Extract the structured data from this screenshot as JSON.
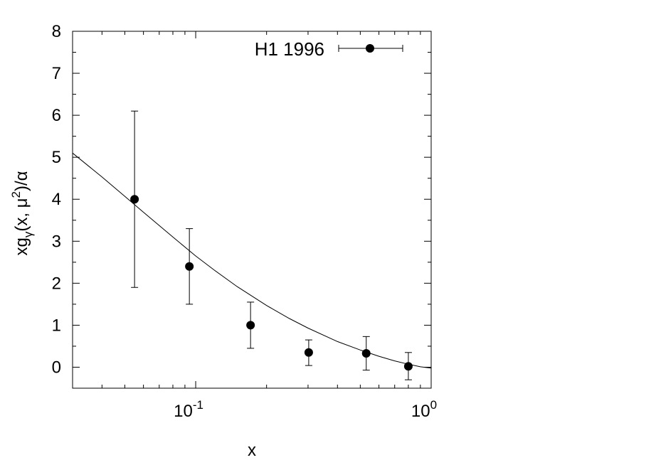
{
  "chart_data": {
    "type": "scatter",
    "xscale": "log",
    "xlim": [
      0.03,
      1.0
    ],
    "ylim": [
      -0.5,
      8
    ],
    "grid": false,
    "legend_position": "top-right",
    "xlabel": "x",
    "ylabel": {
      "prefix": "xg",
      "sub": "γ",
      "middle": "(x, μ",
      "sup": "2",
      "suffix": ")/α"
    },
    "y_ticks": [
      "0",
      "1",
      "2",
      "3",
      "4",
      "5",
      "6",
      "7",
      "8"
    ],
    "x_ticks": [
      {
        "value": 0.1,
        "base": "10",
        "exp": "-1"
      },
      {
        "value": 1.0,
        "base": "10",
        "exp": "0"
      }
    ],
    "series": [
      {
        "name": "H1 1996",
        "kind": "points-with-errors",
        "x": [
          0.055,
          0.094,
          0.171,
          0.302,
          0.53,
          0.8
        ],
        "y": [
          4.0,
          2.4,
          1.0,
          0.35,
          0.33,
          0.02
        ],
        "y_low": [
          1.9,
          1.5,
          0.45,
          0.04,
          -0.07,
          -0.3
        ],
        "y_high": [
          6.1,
          3.3,
          1.55,
          0.65,
          0.73,
          0.35
        ]
      },
      {
        "kind": "curve",
        "x": [
          0.03,
          0.04,
          0.05,
          0.06,
          0.08,
          0.1,
          0.12,
          0.15,
          0.2,
          0.25,
          0.3,
          0.4,
          0.5,
          0.6,
          0.7,
          0.8,
          0.9,
          1.0
        ],
        "y": [
          5.1,
          4.53,
          4.07,
          3.69,
          3.1,
          2.65,
          2.31,
          1.92,
          1.47,
          1.16,
          0.93,
          0.61,
          0.41,
          0.26,
          0.15,
          0.07,
          0.01,
          -0.02
        ]
      }
    ]
  }
}
